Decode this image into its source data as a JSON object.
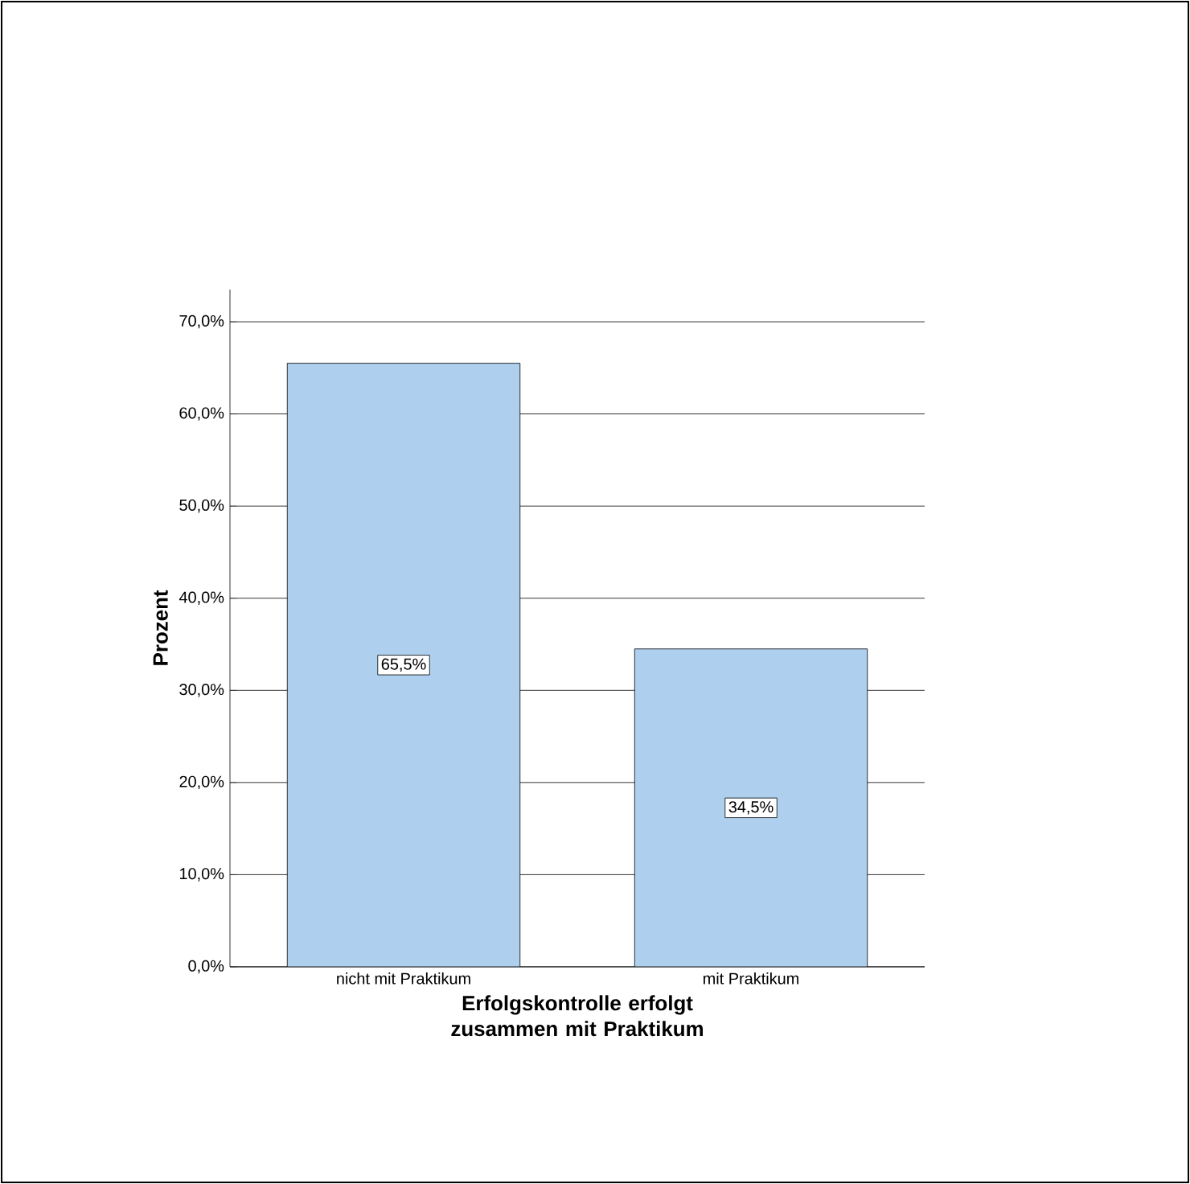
{
  "chart_data": {
    "type": "bar",
    "xlabel": "Erfolgskontrolle erfolgt zusammen mit Praktikum",
    "ylabel": "Prozent",
    "categories": [
      "nicht mit Praktikum",
      "mit Praktikum"
    ],
    "values": [
      65.5,
      34.5
    ],
    "value_labels": [
      "65,5%",
      "34,5%"
    ],
    "color": "#aed0ee",
    "ylim": [
      0,
      73.5
    ],
    "yticks": [
      {
        "value": 0,
        "label": "0,0%"
      },
      {
        "value": 10,
        "label": "10,0%"
      },
      {
        "value": 20,
        "label": "20,0%"
      },
      {
        "value": 30,
        "label": "30,0%"
      },
      {
        "value": 40,
        "label": "40,0%"
      },
      {
        "value": 50,
        "label": "50,0%"
      },
      {
        "value": 60,
        "label": "60,0%"
      },
      {
        "value": 70,
        "label": "70,0%"
      }
    ],
    "grid": "y"
  }
}
